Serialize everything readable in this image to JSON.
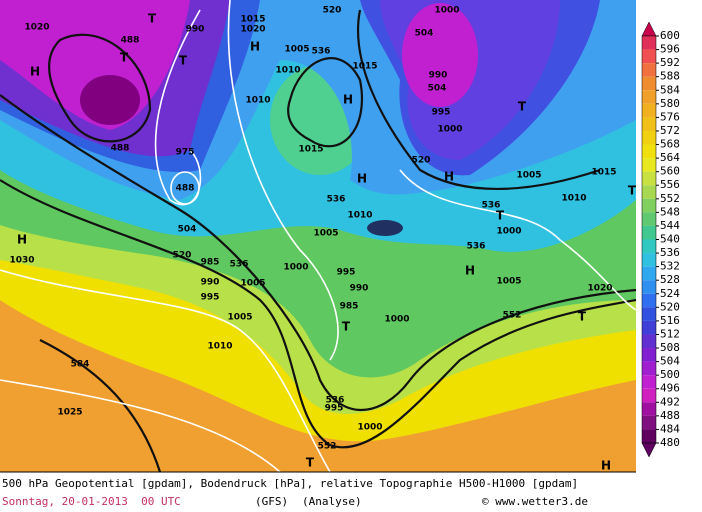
{
  "map": {
    "labels": [
      "488",
      "T",
      "H",
      "T",
      "T",
      "990",
      "1015",
      "1020",
      "H",
      "1005",
      "1010",
      "520",
      "536",
      "504",
      "1000",
      "990",
      "504",
      "995",
      "1000",
      "H",
      "1015",
      "1010",
      "1015",
      "488",
      "975",
      "488",
      "504",
      "520",
      "H",
      "1030",
      "1020",
      "H",
      "536",
      "1010",
      "520",
      "T",
      "H",
      "1005",
      "1015",
      "1010",
      "536",
      "T",
      "1000",
      "536",
      "H",
      "1005",
      "1020",
      "T",
      "552",
      "T",
      "1005",
      "1000",
      "995",
      "990",
      "985",
      "T",
      "1000",
      "536",
      "985",
      "990",
      "995",
      "1005",
      "1005",
      "1010",
      "584",
      "1025",
      "536",
      "995",
      "1000",
      "552",
      "T",
      "H"
    ]
  },
  "colorbar": {
    "levels": [
      600,
      596,
      592,
      588,
      584,
      580,
      576,
      572,
      568,
      564,
      560,
      556,
      552,
      548,
      544,
      540,
      536,
      532,
      528,
      524,
      520,
      516,
      512,
      508,
      504,
      500,
      496,
      492,
      488,
      484,
      480
    ],
    "colors": [
      "#c8004a",
      "#e0305a",
      "#f05050",
      "#f07040",
      "#f08c30",
      "#f0a028",
      "#f0b020",
      "#f0c018",
      "#f0d010",
      "#f0e010",
      "#e8e820",
      "#c8e040",
      "#a8d850",
      "#80d060",
      "#60c870",
      "#40c890",
      "#30c8c0",
      "#30c0e0",
      "#30a8f0",
      "#3090f0",
      "#3070f0",
      "#3050e0",
      "#4040d8",
      "#6030d0",
      "#8020d0",
      "#a020d0",
      "#c020d0",
      "#d020c0",
      "#a010a0",
      "#801080",
      "#600060"
    ]
  },
  "caption": {
    "line1": "500 hPa Geopotential [gpdam], Bodendruck [hPa], relative Topographie H500-H1000 [gpdam]",
    "date": "Sonntag, 20-01-2013  00 UTC",
    "model": "(GFS)",
    "mode": "(Analyse)",
    "credit": "© www.wetter3.de"
  }
}
